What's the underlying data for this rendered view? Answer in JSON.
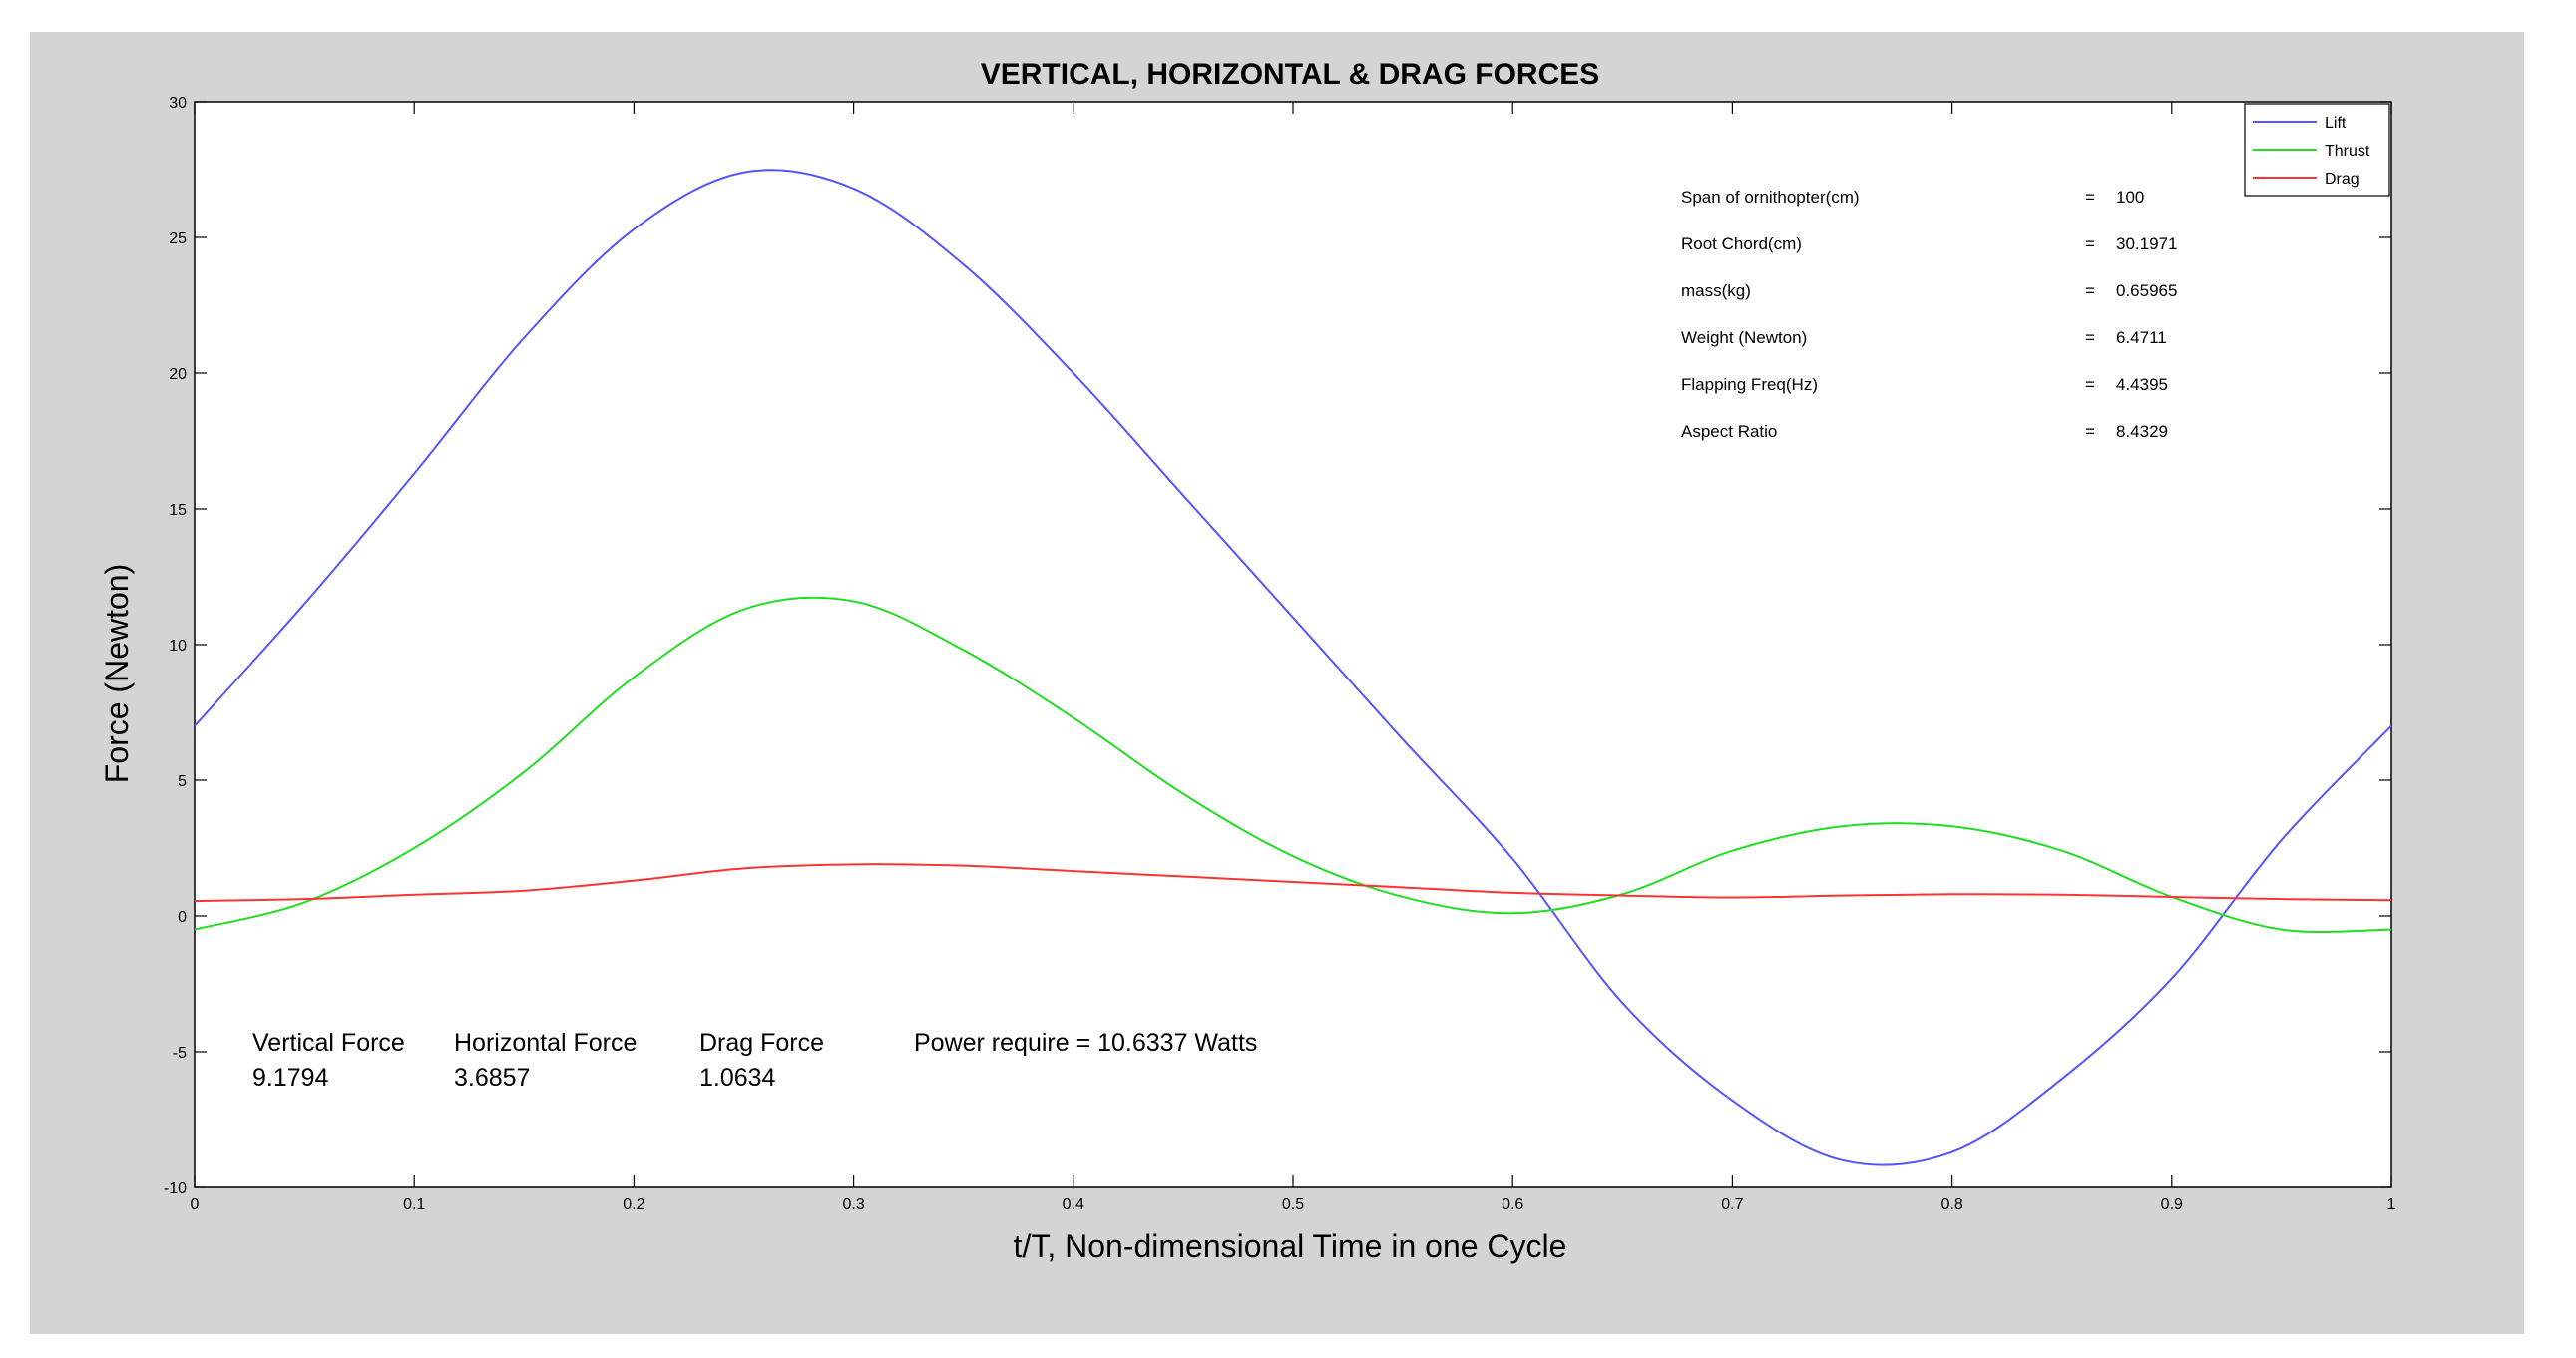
{
  "chart_data": {
    "type": "line",
    "title": "VERTICAL, HORIZONTAL & DRAG FORCES",
    "xlabel": "t/T, Non-dimensional Time in one Cycle",
    "ylabel": "Force (Newton)",
    "xlim": [
      0,
      1
    ],
    "ylim": [
      -10,
      30
    ],
    "xticks": [
      0,
      0.1,
      0.2,
      0.3,
      0.4,
      0.5,
      0.6,
      0.7,
      0.8,
      0.9,
      1
    ],
    "xtick_labels": [
      "0",
      "0.1",
      "0.2",
      "0.3",
      "0.4",
      "0.5",
      "0.6",
      "0.7",
      "0.8",
      "0.9",
      "1"
    ],
    "yticks": [
      -10,
      -5,
      0,
      5,
      10,
      15,
      20,
      25,
      30
    ],
    "ytick_labels": [
      "-10",
      "-5",
      "0",
      "5",
      "10",
      "15",
      "20",
      "25",
      "30"
    ],
    "grid": false,
    "legend_position": "top-right",
    "x": [
      0,
      0.05,
      0.1,
      0.15,
      0.2,
      0.25,
      0.3,
      0.35,
      0.4,
      0.45,
      0.5,
      0.55,
      0.6,
      0.65,
      0.7,
      0.75,
      0.8,
      0.85,
      0.9,
      0.95,
      1
    ],
    "series": [
      {
        "name": "Lift",
        "color": "#5555ff",
        "values": [
          7.0,
          11.5,
          16.3,
          21.3,
          25.3,
          27.4,
          26.8,
          24.0,
          20.0,
          15.5,
          11.0,
          6.5,
          2.1,
          -3.2,
          -6.8,
          -9.0,
          -8.7,
          -6.0,
          -2.3,
          2.8,
          7.0
        ]
      },
      {
        "name": "Thrust",
        "color": "#22dd22",
        "values": [
          -0.5,
          0.5,
          2.5,
          5.3,
          8.8,
          11.3,
          11.6,
          9.8,
          7.3,
          4.5,
          2.2,
          0.7,
          0.1,
          0.8,
          2.4,
          3.3,
          3.3,
          2.4,
          0.7,
          -0.5,
          -0.5
        ]
      },
      {
        "name": "Drag",
        "color": "#ff3333",
        "values": [
          0.55,
          0.62,
          0.78,
          0.93,
          1.3,
          1.75,
          1.9,
          1.85,
          1.65,
          1.45,
          1.25,
          1.05,
          0.85,
          0.75,
          0.68,
          0.75,
          0.8,
          0.78,
          0.7,
          0.62,
          0.58
        ]
      }
    ],
    "parameters": [
      {
        "label": "Span of ornithopter(cm)",
        "eq": "=",
        "value": "100"
      },
      {
        "label": "Root Chord(cm)",
        "eq": "=",
        "value": "30.1971"
      },
      {
        "label": "mass(kg)",
        "eq": "=",
        "value": "0.65965"
      },
      {
        "label": "Weight (Newton)",
        "eq": "=",
        "value": "6.4711"
      },
      {
        "label": "Flapping Freq(Hz)",
        "eq": "=",
        "value": "4.4395"
      },
      {
        "label": "Aspect Ratio",
        "eq": "=",
        "value": "8.4329"
      }
    ],
    "summary": [
      {
        "label": "Vertical Force",
        "value": "9.1794"
      },
      {
        "label": "Horizontal Force",
        "value": "3.6857"
      },
      {
        "label": "Drag Force",
        "value": "1.0634"
      }
    ],
    "power_text": "Power require = 10.6337 Watts"
  },
  "colors": {
    "figure_background": "#d4d4d4",
    "axes_background": "#ffffff"
  }
}
